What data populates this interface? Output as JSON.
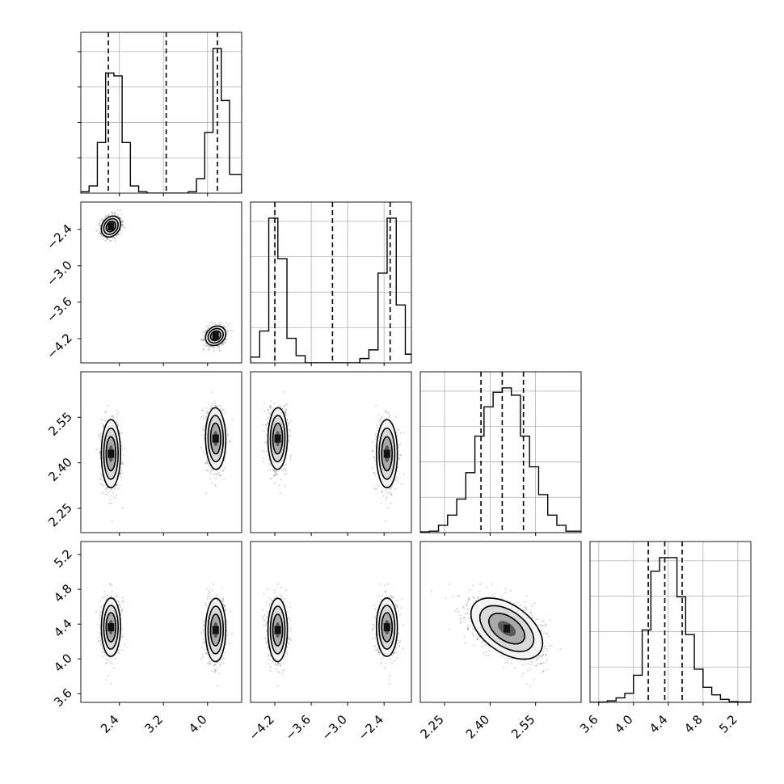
{
  "chart_data": {
    "type": "corner",
    "title": "",
    "parameters": [
      "",
      "",
      "",
      ""
    ],
    "quantiles": [
      [
        2.2,
        3.25,
        4.18
      ],
      [
        -4.2,
        -3.25,
        -2.3
      ],
      [
        2.37,
        2.44,
        2.51
      ],
      [
        4.17,
        4.36,
        4.56
      ]
    ],
    "ranges": [
      [
        1.7,
        4.62
      ],
      [
        -4.6,
        -1.95
      ],
      [
        2.17,
        2.7
      ],
      [
        3.5,
        5.35
      ]
    ],
    "ticks": [
      {
        "values": [
          2.4,
          3.2,
          4.0
        ],
        "labels": [
          "2.4",
          "3.2",
          "4.0"
        ]
      },
      {
        "values": [
          -4.2,
          -3.6,
          -3.0,
          -2.4
        ],
        "labels": [
          "−4.2",
          "−3.6",
          "−3.0",
          "−2.4"
        ]
      },
      {
        "values": [
          2.25,
          2.4,
          2.55
        ],
        "labels": [
          "2.25",
          "2.40",
          "2.55"
        ]
      },
      {
        "values": [
          3.6,
          4.0,
          4.4,
          4.8,
          5.2
        ],
        "labels": [
          "3.6",
          "4.0",
          "4.4",
          "4.8",
          "5.2"
        ]
      }
    ],
    "histograms": [
      {
        "bins": [
          1.7,
          1.85,
          2.0,
          2.15,
          2.3,
          2.45,
          2.6,
          2.75,
          2.9,
          3.05,
          3.2,
          3.35,
          3.5,
          3.65,
          3.8,
          3.95,
          4.1,
          4.25,
          4.4,
          4.62
        ],
        "counts": [
          1,
          5,
          35,
          83,
          81,
          35,
          5,
          1,
          0,
          0,
          0,
          0,
          0,
          1,
          10,
          42,
          100,
          64,
          13
        ]
      },
      {
        "bins": [
          -4.6,
          -4.45,
          -4.3,
          -4.15,
          -4.0,
          -3.85,
          -3.7,
          -3.55,
          -3.4,
          -3.25,
          -3.1,
          -2.95,
          -2.8,
          -2.65,
          -2.5,
          -2.35,
          -2.2,
          -2.05,
          -1.95
        ],
        "counts": [
          4,
          22,
          100,
          72,
          17,
          5,
          0,
          0,
          0,
          0,
          0,
          0,
          3,
          9,
          62,
          100,
          40,
          6
        ]
      },
      {
        "bins": [
          2.17,
          2.2,
          2.23,
          2.26,
          2.29,
          2.32,
          2.35,
          2.38,
          2.41,
          2.44,
          2.47,
          2.5,
          2.53,
          2.56,
          2.59,
          2.62,
          2.65,
          2.7
        ],
        "counts": [
          0.5,
          1,
          5,
          12,
          23,
          41,
          66,
          86,
          96,
          99,
          94,
          66,
          45,
          26,
          12,
          5,
          1
        ]
      },
      {
        "bins": [
          3.5,
          3.6,
          3.7,
          3.8,
          3.9,
          4.0,
          4.1,
          4.2,
          4.3,
          4.4,
          4.5,
          4.6,
          4.7,
          4.8,
          4.9,
          5.0,
          5.1,
          5.2,
          5.35
        ],
        "counts": [
          0,
          0.2,
          1,
          3,
          6,
          18,
          48,
          87,
          96,
          96,
          70,
          45,
          22,
          10,
          5,
          2,
          0.5,
          0.2
        ]
      }
    ],
    "modes": [
      {
        "center": [
          2.25,
          -2.35
        ],
        "sd": [
          0.09,
          0.085
        ],
        "rho": 0.2,
        "weight": 0.5
      },
      {
        "center": [
          4.15,
          -4.15
        ],
        "sd": [
          0.09,
          0.08
        ],
        "rho": 0.2,
        "weight": 0.5
      }
    ],
    "cond": [
      {
        "x2": [
          2.43,
          0.055
        ],
        "x3": [
          4.36,
          0.17
        ]
      },
      {
        "x2": [
          2.48,
          0.05
        ],
        "x3": [
          4.33,
          0.18
        ]
      }
    ],
    "corr23": -0.5
  }
}
